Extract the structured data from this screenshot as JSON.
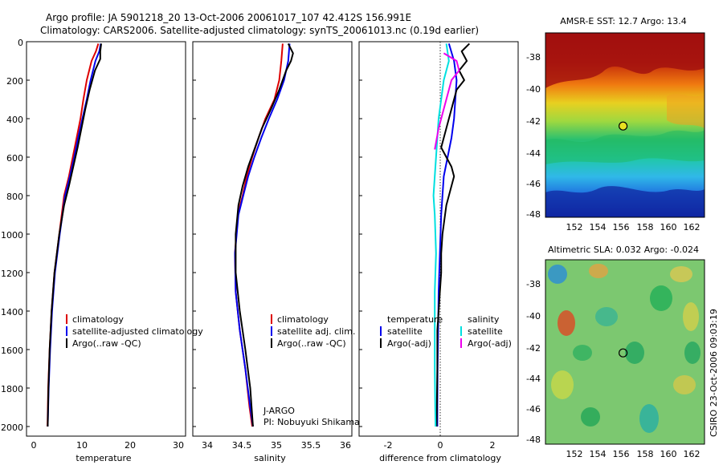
{
  "header": {
    "line1": "Argo profile: JA 5901218_20 13-Oct-2006 20061017_107 42.412S 156.991E",
    "line2": "Climatology: CARS2006. Satellite-adjusted climatology: synTS_20061013.nc (0.19d earlier)"
  },
  "credit": "CSIRO 23-Oct-2006 09:03:19",
  "colors": {
    "climatology": "#dd0000",
    "satellite": "#0000ee",
    "argo": "#000000",
    "salinity_satellite": "#00e0e0",
    "salinity_argo": "#ee00ee"
  },
  "chart_data": [
    {
      "id": "temperature",
      "type": "line",
      "xlabel": "temperature",
      "ylabel": "",
      "xlim": [
        -2,
        31
      ],
      "ylim": [
        2050,
        0
      ],
      "xticks": [
        "0",
        "10",
        "20",
        "30"
      ],
      "yticks": [
        "0",
        "200",
        "400",
        "600",
        "800",
        "1000",
        "1200",
        "1400",
        "1600",
        "1800",
        "2000"
      ],
      "legend": [
        "climatology",
        "satellite-adjusted climatology",
        "Argo(..raw -QC)"
      ],
      "series": [
        {
          "name": "climatology",
          "color": "#dd0000",
          "x": [
            12.9,
            12.4,
            11.5,
            10.5,
            9.8,
            9.2,
            8.4,
            7.6,
            6.8,
            5.8,
            4.8,
            3.8,
            3.2,
            2.8,
            2.5,
            2.35
          ],
          "y": [
            10,
            50,
            100,
            200,
            300,
            400,
            500,
            600,
            700,
            800,
            1000,
            1200,
            1400,
            1600,
            1800,
            2000
          ]
        },
        {
          "name": "satellite-adjusted climatology",
          "color": "#0000ee",
          "x": [
            13.4,
            13.1,
            12.3,
            11.3,
            10.5,
            9.6,
            8.7,
            7.9,
            7.0,
            6.0,
            4.9,
            3.9,
            3.3,
            2.9,
            2.6,
            2.4
          ],
          "y": [
            10,
            50,
            100,
            200,
            300,
            400,
            500,
            600,
            700,
            800,
            1000,
            1200,
            1400,
            1600,
            1800,
            2000
          ]
        },
        {
          "name": "Argo(..raw -QC)",
          "color": "#000000",
          "x": [
            13.5,
            13.3,
            13.3,
            12.2,
            11.1,
            10.2,
            9.4,
            8.6,
            7.7,
            6.8,
            5.8,
            4.8,
            3.8,
            3.2,
            2.8,
            2.55,
            2.4
          ],
          "y": [
            10,
            50,
            90,
            150,
            250,
            350,
            450,
            550,
            650,
            750,
            850,
            1000,
            1200,
            1400,
            1600,
            1800,
            2000
          ]
        }
      ]
    },
    {
      "id": "salinity",
      "type": "line",
      "xlabel": "salinity",
      "ylabel": "",
      "xlim": [
        33.8,
        36.1
      ],
      "ylim": [
        2050,
        0
      ],
      "xticks": [
        "34",
        "34.5",
        "35",
        "35.5",
        "36"
      ],
      "legend": [
        "climatology",
        "satellite adj. clim.",
        "Argo(..raw -QC)"
      ],
      "annotation": [
        "J-ARGO",
        "PI: Nobuyuki Shikama"
      ],
      "series": [
        {
          "name": "climatology",
          "color": "#dd0000",
          "x": [
            35.1,
            35.08,
            35.05,
            34.98,
            34.85,
            34.75,
            34.66,
            34.58,
            34.52,
            34.45,
            34.41,
            34.42,
            34.48,
            34.56,
            34.62,
            34.66
          ],
          "y": [
            10,
            100,
            200,
            300,
            400,
            500,
            600,
            700,
            800,
            900,
            1100,
            1300,
            1500,
            1700,
            1900,
            2000
          ]
        },
        {
          "name": "satellite adj. clim.",
          "color": "#0000ee",
          "x": [
            35.2,
            35.18,
            35.12,
            35.02,
            34.9,
            34.79,
            34.69,
            34.6,
            34.53,
            34.46,
            34.41,
            34.42,
            34.48,
            34.56,
            34.63,
            34.67
          ],
          "y": [
            10,
            100,
            200,
            300,
            400,
            500,
            600,
            700,
            800,
            900,
            1100,
            1300,
            1500,
            1700,
            1900,
            2000
          ]
        },
        {
          "name": "Argo(..raw -QC)",
          "color": "#000000",
          "x": [
            35.18,
            35.25,
            35.22,
            35.15,
            35.05,
            34.93,
            34.8,
            34.7,
            34.6,
            34.52,
            34.46,
            34.42,
            34.42,
            34.48,
            34.56,
            34.63,
            34.67
          ],
          "y": [
            10,
            60,
            100,
            150,
            250,
            350,
            450,
            550,
            650,
            750,
            850,
            1000,
            1200,
            1400,
            1600,
            1800,
            2000
          ]
        }
      ]
    },
    {
      "id": "difference",
      "type": "line",
      "xlabel": "difference from climatology",
      "ylabel": "",
      "xlim": [
        -3,
        3.2
      ],
      "ylim": [
        2050,
        0
      ],
      "xticks": [
        "-2",
        "0",
        "2"
      ],
      "legend_left": {
        "title": "temperature",
        "entries": [
          "satellite",
          "Argo(-adj)"
        ]
      },
      "legend_right": {
        "title": "salinity",
        "entries": [
          "satellite",
          "Argo(-adj)"
        ]
      },
      "series": [
        {
          "name": "temperature satellite",
          "color": "#0000ee",
          "x": [
            0.5,
            0.7,
            0.8,
            0.75,
            0.7,
            0.6,
            0.45,
            0.3,
            0.25,
            0.2,
            0.15,
            0.1,
            0.08,
            0.06,
            0.05,
            0.05
          ],
          "y": [
            10,
            100,
            200,
            300,
            400,
            500,
            600,
            700,
            800,
            900,
            1100,
            1300,
            1500,
            1700,
            1900,
            2000
          ]
        },
        {
          "name": "temperature Argo(-adj)",
          "color": "#000000",
          "x": [
            1.3,
            1.0,
            1.2,
            0.9,
            1.1,
            0.8,
            0.7,
            0.6,
            0.5,
            0.4,
            0.3,
            0.2,
            0.4,
            0.6,
            0.7,
            0.6,
            0.5,
            0.4,
            0.35,
            0.3,
            0.25,
            0.2,
            0.2,
            0.15,
            0.1,
            0.05,
            0.05,
            0.03,
            0.02
          ],
          "y": [
            10,
            50,
            100,
            150,
            200,
            250,
            300,
            350,
            400,
            450,
            500,
            550,
            600,
            650,
            700,
            750,
            800,
            850,
            900,
            950,
            1000,
            1100,
            1200,
            1300,
            1400,
            1500,
            1700,
            1900,
            2000
          ]
        },
        {
          "name": "salinity satellite",
          "color": "#00e0e0",
          "x": [
            0.4,
            0.5,
            0.3,
            0.2,
            0.1,
            0.05,
            0.0,
            -0.05,
            -0.1,
            -0.05,
            0.0,
            -0.05,
            -0.05,
            -0.05,
            -0.03,
            -0.02
          ],
          "y": [
            10,
            100,
            200,
            300,
            400,
            500,
            600,
            700,
            800,
            900,
            1100,
            1300,
            1500,
            1700,
            1900,
            2000
          ]
        },
        {
          "name": "salinity Argo(-adj)",
          "color": "#ee00ee",
          "x": [
            0.3,
            0.8,
            0.9,
            0.6,
            0.5,
            0.3,
            0.1,
            -0.05
          ],
          "y": [
            60,
            100,
            150,
            200,
            250,
            350,
            450,
            560
          ]
        }
      ]
    },
    {
      "id": "sst-map",
      "type": "heatmap",
      "title": "AMSR-E SST: 12.7 Argo: 13.4",
      "xlim": [
        150.5,
        163.8
      ],
      "ylim": [
        -48.5,
        -36.2
      ],
      "xticks": [
        "152",
        "154",
        "156",
        "158",
        "160",
        "162"
      ],
      "yticks": [
        "-38",
        "-40",
        "-42",
        "-44",
        "-46",
        "-48"
      ],
      "marker": {
        "lon": 156.991,
        "lat": -42.412
      }
    },
    {
      "id": "sla-map",
      "type": "heatmap",
      "title": "Altimetric SLA: 0.032 Argo: -0.024",
      "xlim": [
        150.5,
        163.8
      ],
      "ylim": [
        -48.5,
        -36.2
      ],
      "xticks": [
        "152",
        "154",
        "156",
        "158",
        "160",
        "162"
      ],
      "yticks": [
        "-38",
        "-40",
        "-42",
        "-44",
        "-46",
        "-48"
      ],
      "marker": {
        "lon": 156.991,
        "lat": -42.412
      }
    }
  ]
}
